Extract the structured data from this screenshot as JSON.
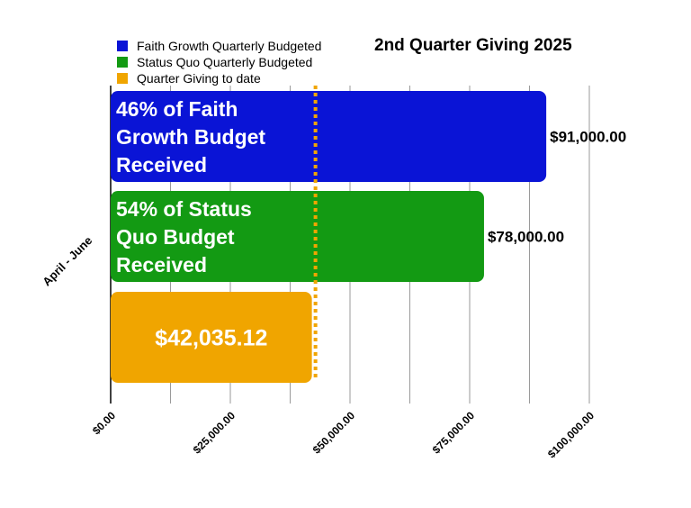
{
  "chart_data": {
    "type": "bar",
    "orientation": "horizontal",
    "title": "2nd Quarter Giving 2025",
    "category": "April - June",
    "xlim": [
      0,
      100000
    ],
    "x_ticks": [
      0,
      25000,
      50000,
      75000,
      100000
    ],
    "x_tick_labels": [
      "$0.00",
      "$25,000.00",
      "$50,000.00",
      "$75,000.00",
      "$100,000.00"
    ],
    "grid": true,
    "legend_position": "top-left",
    "reference_line": {
      "value": 42035.12,
      "color": "#F0A500",
      "style": "dotted"
    },
    "series": [
      {
        "name": "Faith Growth Quarterly Budgeted",
        "value": 91000,
        "color": "#0A14D6",
        "value_label": "$91,000.00",
        "bar_text": [
          "46% of Faith",
          "Growth Budget",
          "Received"
        ]
      },
      {
        "name": "Status Quo Quarterly Budgeted",
        "value": 78000,
        "color": "#139A13",
        "value_label": "$78,000.00",
        "bar_text": [
          "54% of Status",
          "Quo Budget",
          "Received"
        ]
      },
      {
        "name": "Quarter Giving to date",
        "value": 42035.12,
        "color": "#F0A500",
        "value_label": "",
        "bar_text": [
          "$42,035.12"
        ]
      }
    ]
  }
}
